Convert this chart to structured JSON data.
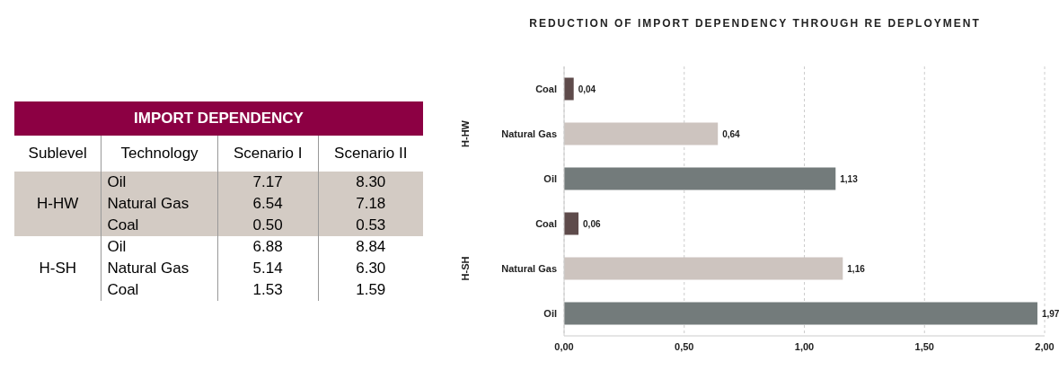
{
  "chart_data": [
    {
      "type": "other",
      "title": "IMPORT DEPENDENCY",
      "annotations": [
        "Sublevel",
        "Technology",
        "H-HW",
        "H-SH"
      ],
      "categories": [
        "Scenario I",
        "Scenario II"
      ],
      "y_categories": [
        "Oil",
        "Natural Gas",
        "Coal",
        "Oil",
        "Natural Gas",
        "Coal"
      ],
      "cell_labels": [
        [
          "7.17",
          "8.30"
        ],
        [
          "6.54",
          "7.18"
        ],
        [
          "0.50",
          "0.53"
        ],
        [
          "6.88",
          "8.84"
        ],
        [
          "5.14",
          "6.30"
        ],
        [
          "1.53",
          "1.59"
        ]
      ]
    },
    {
      "type": "bar",
      "orientation": "horizontal",
      "title": "REDUCTION OF IMPORT DEPENDENCY THROUGH RE DEPLOYMENT",
      "annotations": [
        "H-HW",
        "H-SH"
      ],
      "categories": [
        "Coal",
        "Natural Gas",
        "Oil",
        "Coal",
        "Natural Gas",
        "Oil"
      ],
      "values": [
        0.04,
        0.64,
        1.13,
        0.06,
        1.16,
        1.97
      ],
      "colors": [
        "#5e4b4b",
        "#cdc4bf",
        "#737b7b",
        "#5e4b4b",
        "#cdc4bf",
        "#737b7b"
      ],
      "value_labels": [
        "0,04",
        "0,64",
        "1,13",
        "0,06",
        "1,16",
        "1,97"
      ],
      "xlim": [
        0,
        2
      ],
      "xticks": [
        {
          "value": 0,
          "label": "0,00"
        },
        {
          "value": 0.5,
          "label": "0,50"
        },
        {
          "value": 1,
          "label": "1,00"
        },
        {
          "value": 1.5,
          "label": "1,50"
        },
        {
          "value": 2,
          "label": "2,00"
        }
      ],
      "grid": "x"
    }
  ]
}
